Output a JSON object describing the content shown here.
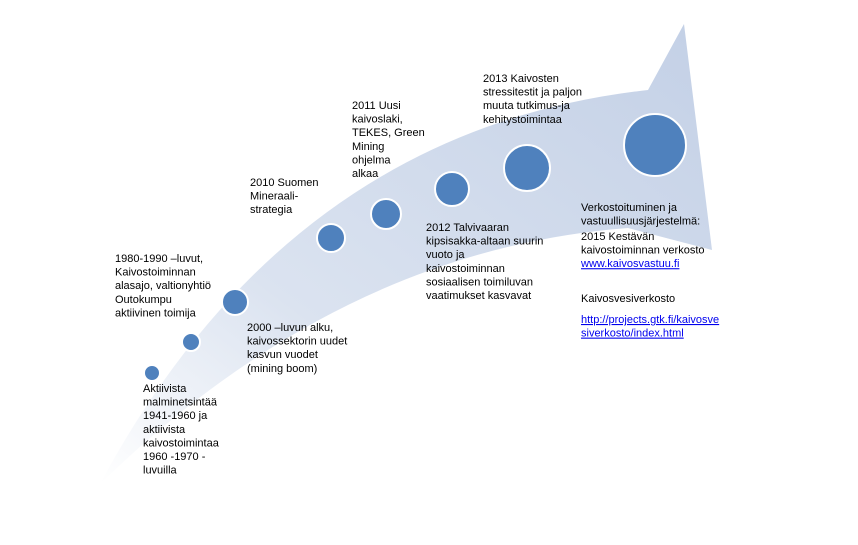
{
  "events": [
    {
      "lines": [
        "Aktiivista",
        "malminetsintää",
        "1941-1960 ja",
        "aktiivista",
        "kaivostoimintaa",
        "1960 -1970 -",
        "luvuilla"
      ]
    },
    {
      "lines": [
        "1980-1990 –luvut,",
        "Kaivostoiminnan",
        "alasajo, valtionyhtiö",
        "Outokumpu",
        "aktiivinen toimija"
      ]
    },
    {
      "lines": [
        "2000 –luvun alku,",
        "kaivossektorin uudet",
        "kasvun vuodet",
        "(mining boom)"
      ]
    },
    {
      "lines": [
        "2010 Suomen",
        "Mineraali-",
        "strategia"
      ]
    },
    {
      "lines": [
        "2011 Uusi",
        "kaivoslaki,",
        "TEKES, Green",
        "Mining",
        "ohjelma",
        "alkaa"
      ]
    },
    {
      "lines": [
        "2012 Talvivaaran",
        "kipsisakka-altaan suurin",
        "vuoto ja",
        "kaivostoiminnan",
        "sosiaalisen toimiluvan",
        "vaatimukset kasvavat"
      ]
    },
    {
      "lines": [
        "2013 Kaivosten",
        "stressitestit ja paljon",
        "muuta tutkimus-ja",
        "kehitystoimintaa"
      ]
    }
  ],
  "networks": {
    "heading": [
      "Verkostoituminen ja",
      "vastuullisuusjärjestelmä:"
    ],
    "network1": [
      "2015 Kestävän",
      "kaivostoiminnan verkosto"
    ],
    "link1": "www.kaivosvastuu.fi",
    "network2": "Kaivosvesiverkosto",
    "link2": [
      "http://projects.gtk.fi/kaivosve",
      "siverkosto/index.html"
    ]
  }
}
